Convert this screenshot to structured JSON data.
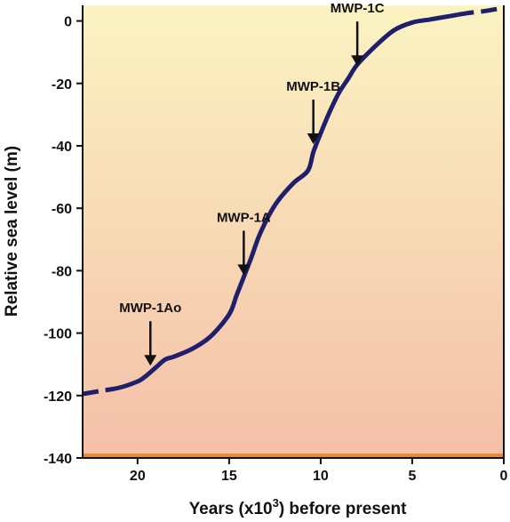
{
  "chart_data": {
    "type": "line",
    "title": "",
    "xlabel_prefix": "Years (x10",
    "xlabel_sup": "3",
    "xlabel_suffix": ") before present",
    "ylabel": "Relative sea level (m)",
    "xlim": [
      23,
      0
    ],
    "ylim": [
      -140,
      5
    ],
    "x_reversed": true,
    "x_ticks": [
      20,
      15,
      10,
      5,
      0
    ],
    "x_tick_labels": [
      "20",
      "15",
      "10",
      "5",
      "0"
    ],
    "y_ticks": [
      0,
      -20,
      -40,
      -60,
      -80,
      -100,
      -120,
      -140
    ],
    "y_tick_labels": [
      "0",
      "-20",
      "-40",
      "-60",
      "-80",
      "-100",
      "-120",
      "-140"
    ],
    "grid": false,
    "legend": "none",
    "series": [
      {
        "x": [
          23.0,
          22.0,
          21.0,
          20.0,
          19.6,
          19.0,
          18.5,
          18.0,
          17.0,
          16.0,
          15.0,
          14.6,
          14.2,
          13.8,
          13.3,
          12.5,
          11.5,
          10.7,
          10.4,
          10.0,
          9.5,
          9.0,
          8.5,
          8.0,
          7.0,
          6.0,
          5.0,
          4.0,
          3.0,
          2.5,
          2.0,
          1.0,
          0.0
        ],
        "y": [
          -119.5,
          -118.5,
          -117.5,
          -115.5,
          -114,
          -111,
          -108.5,
          -107.5,
          -105,
          -101,
          -94,
          -88,
          -82,
          -76,
          -68,
          -59,
          -52,
          -48,
          -42,
          -36,
          -29,
          -23,
          -18.5,
          -14,
          -8,
          -3,
          -0.5,
          0.5,
          1.5,
          2,
          2.5,
          3.2,
          4.2
        ],
        "dashed_ranges": [
          [
            23.0,
            21.0
          ],
          [
            2.5,
            0.0
          ]
        ],
        "color": "#1f1f6b"
      }
    ],
    "annotations": [
      {
        "label": "MWP-1Ao",
        "x": 19.3,
        "y": -111
      },
      {
        "label": "MWP-1A",
        "x": 14.2,
        "y": -82
      },
      {
        "label": "MWP-1B",
        "x": 10.4,
        "y": -40
      },
      {
        "label": "MWP-1C",
        "x": 8.0,
        "y": -15
      }
    ],
    "colors": {
      "background_top": "#fbf3c2",
      "background_bottom": "#f4bfa8",
      "baseline": "#e8893a",
      "axis": "#111111",
      "arrow": "#111111"
    }
  }
}
